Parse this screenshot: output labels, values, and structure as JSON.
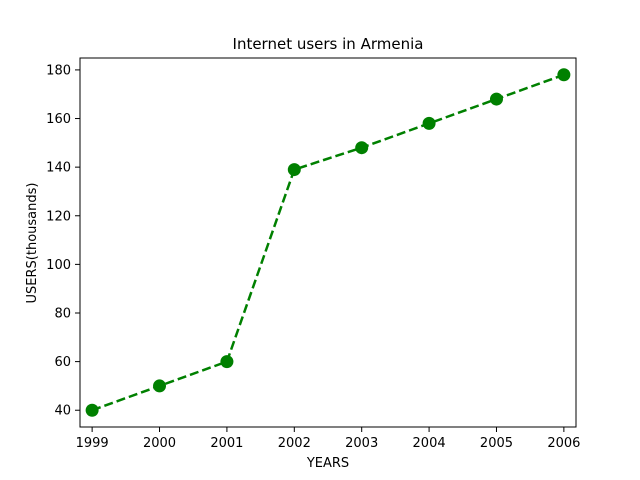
{
  "chart_data": {
    "type": "line",
    "title": "Internet users in Armenia",
    "xlabel": "YEARS",
    "ylabel": "USERS(thousands)",
    "x": [
      1999,
      2000,
      2001,
      2002,
      2003,
      2004,
      2005,
      2006
    ],
    "series": [
      {
        "values": [
          40,
          50,
          60,
          139,
          148,
          158,
          168,
          178
        ],
        "color": "#008000",
        "line_style": "dashed",
        "marker": "circle"
      }
    ],
    "xlim": [
      1998.82,
      2006.18
    ],
    "ylim": [
      33.1,
      184.9
    ],
    "xticks": [
      1999,
      2000,
      2001,
      2002,
      2003,
      2004,
      2005,
      2006
    ],
    "yticks": [
      40,
      60,
      80,
      100,
      120,
      140,
      160,
      180
    ],
    "grid": false,
    "legend": false
  }
}
